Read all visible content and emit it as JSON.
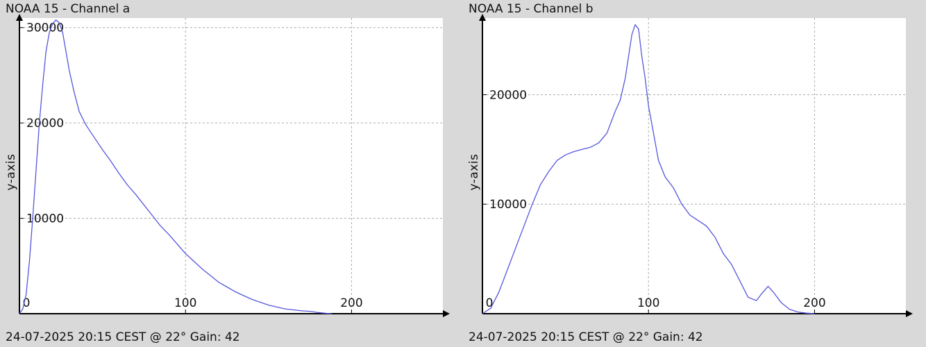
{
  "panels": [
    {
      "title": "NOAA 15 - Channel a",
      "footer": "24-07-2025 20:15 CEST @ 22° Gain: 42",
      "ylabel": "y-axis"
    },
    {
      "title": "NOAA 15 - Channel b",
      "footer": "24-07-2025 20:15 CEST @ 22° Gain: 42",
      "ylabel": "y-axis"
    }
  ],
  "colors": {
    "line": "#5555dd",
    "grid": "#aaaaaa",
    "axis": "#000000",
    "plot_bg": "#ffffff",
    "page_bg": "#d9d9d9"
  },
  "chart_data": [
    {
      "type": "line",
      "title": "NOAA 15 - Channel a",
      "xlabel": "",
      "ylabel": "y-axis",
      "xlim": [
        0,
        255
      ],
      "ylim": [
        0,
        31000
      ],
      "xticks": [
        0,
        100,
        200
      ],
      "xtick_labels": [
        "0",
        "100",
        "200"
      ],
      "yticks": [
        10000,
        20000,
        30000
      ],
      "ytick_labels": [
        "10000",
        "20000",
        "30000"
      ],
      "grid": true,
      "series": [
        {
          "x": [
            0,
            2,
            4,
            6,
            8,
            10,
            12,
            14,
            16,
            18,
            20,
            22,
            24,
            26,
            28,
            30,
            33,
            36,
            40,
            45,
            50,
            55,
            60,
            65,
            70,
            75,
            80,
            85,
            90,
            95,
            100,
            105,
            110,
            115,
            120,
            125,
            130,
            135,
            140,
            145,
            150,
            155,
            160,
            165,
            170,
            175,
            180,
            185,
            188
          ],
          "y": [
            0,
            500,
            2000,
            5500,
            10000,
            15000,
            20000,
            24000,
            27500,
            29500,
            30400,
            30800,
            30500,
            29500,
            27500,
            25500,
            23200,
            21200,
            19800,
            18500,
            17200,
            16000,
            14700,
            13500,
            12500,
            11400,
            10300,
            9200,
            8300,
            7300,
            6300,
            5500,
            4700,
            4000,
            3300,
            2800,
            2300,
            1900,
            1500,
            1200,
            900,
            700,
            500,
            400,
            300,
            250,
            120,
            40,
            0
          ]
        }
      ]
    },
    {
      "type": "line",
      "title": "NOAA 15 - Channel b",
      "xlabel": "",
      "ylabel": "y-axis",
      "xlim": [
        0,
        255
      ],
      "ylim": [
        0,
        27000
      ],
      "xticks": [
        0,
        100,
        200
      ],
      "xtick_labels": [
        "0",
        "100",
        "200"
      ],
      "yticks": [
        10000,
        20000
      ],
      "ytick_labels": [
        "10000",
        "20000"
      ],
      "grid": true,
      "series": [
        {
          "x": [
            0,
            5,
            10,
            15,
            20,
            25,
            30,
            35,
            40,
            45,
            50,
            55,
            60,
            65,
            70,
            75,
            80,
            83,
            86,
            88,
            90,
            92,
            94,
            96,
            98,
            100,
            103,
            106,
            110,
            115,
            120,
            125,
            130,
            135,
            140,
            145,
            150,
            155,
            160,
            165,
            168,
            172,
            175,
            180,
            185,
            190,
            195,
            200
          ],
          "y": [
            0,
            500,
            2000,
            4000,
            6000,
            8000,
            10000,
            11800,
            13000,
            14000,
            14500,
            14800,
            15000,
            15200,
            15600,
            16500,
            18500,
            19500,
            21500,
            23500,
            25500,
            26400,
            26000,
            23500,
            21500,
            19000,
            16500,
            14000,
            12500,
            11500,
            10000,
            9000,
            8500,
            8000,
            7000,
            5500,
            4500,
            3000,
            1500,
            1200,
            1800,
            2500,
            2000,
            1000,
            400,
            150,
            50,
            0
          ]
        }
      ]
    }
  ]
}
